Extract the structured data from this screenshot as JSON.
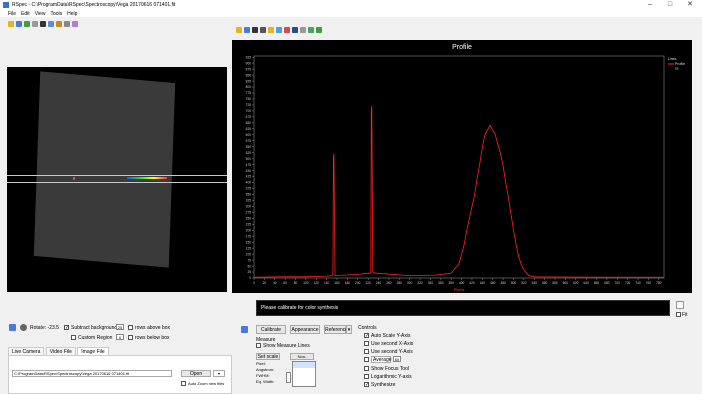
{
  "window": {
    "title": "RSpec - C:\\ProgramData\\RSpec\\Spectroscopy\\Vega 20170616 071401.fit",
    "min_glyph": "–",
    "max_glyph": "□",
    "close_glyph": "✕"
  },
  "menu": [
    "File",
    "Edit",
    "View",
    "Tools",
    "Help"
  ],
  "left_controls": {
    "rotate_label": "Rotate: -23.5",
    "subtract_background_label": "Subtract background",
    "custom_region_label": "Custom Region",
    "rows_above_value": "20",
    "rows_above_label": "rows above box",
    "rows_below_value": "0",
    "rows_below_label": "rows below box",
    "tabs": [
      "Live Camera",
      "Video File",
      "Image File"
    ],
    "active_tab": "Image File",
    "file_path": "C:\\ProgramData\\RSpec\\Spectroscopy\\Vega 20170616 071401.fit",
    "open_label": "Open",
    "auto_zoom_label": "Auto Zoom new files"
  },
  "profile_chart": {
    "title": "Profile",
    "x_axis_label": "Pixels",
    "legend": {
      "title": "Lines",
      "entries": [
        "Profile",
        "ss"
      ]
    },
    "y_ticks": [
      "925",
      "900",
      "875",
      "850",
      "825",
      "800",
      "775",
      "750",
      "725",
      "700",
      "675",
      "650",
      "625",
      "600",
      "575",
      "550",
      "525",
      "500",
      "475",
      "450",
      "425",
      "400",
      "375",
      "350",
      "325",
      "300",
      "275",
      "250",
      "225",
      "200",
      "175",
      "150",
      "125",
      "100",
      "75",
      "50",
      "25",
      "0"
    ],
    "x_ticks": [
      "0",
      "20",
      "40",
      "60",
      "80",
      "100",
      "120",
      "140",
      "160",
      "180",
      "200",
      "220",
      "240",
      "260",
      "280",
      "300",
      "320",
      "340",
      "360",
      "380",
      "400",
      "420",
      "440",
      "460",
      "480",
      "500",
      "520",
      "540",
      "560",
      "580",
      "600",
      "620",
      "640",
      "660",
      "680",
      "700",
      "720",
      "740",
      "760",
      "780"
    ]
  },
  "chart_data": {
    "type": "line",
    "title": "Profile",
    "xlabel": "Pixels",
    "ylabel": "",
    "xlim": [
      0,
      790
    ],
    "ylim": [
      0,
      930
    ],
    "grid": false,
    "legend": "top-right",
    "series": [
      {
        "name": "Profile",
        "color": "#ff2020",
        "x": [
          0,
          50,
          100,
          140,
          152,
          153,
          154,
          156,
          200,
          220,
          225,
          226,
          227,
          229,
          235,
          300,
          350,
          380,
          395,
          405,
          410,
          415,
          420,
          425,
          430,
          435,
          440,
          445,
          450,
          455,
          460,
          465,
          470,
          475,
          480,
          485,
          490,
          495,
          500,
          505,
          510,
          515,
          520,
          525,
          530,
          540,
          600,
          700,
          790
        ],
        "y": [
          3,
          5,
          5,
          8,
          10,
          500,
          520,
          10,
          15,
          20,
          20,
          700,
          720,
          25,
          20,
          10,
          12,
          20,
          60,
          140,
          200,
          250,
          300,
          350,
          420,
          480,
          550,
          600,
          620,
          640,
          620,
          600,
          560,
          520,
          470,
          400,
          340,
          270,
          200,
          140,
          90,
          55,
          35,
          20,
          10,
          5,
          4,
          3,
          3
        ]
      }
    ]
  },
  "status_message": "Please calibrate for color synthesis",
  "right_panel": {
    "fit_label": "Fit",
    "calibrate_label": "Calibrate",
    "appearance_label": "Appearance",
    "reference_label": "Reference",
    "measure_label": "Measure",
    "show_measure_lines_label": "Show Measure Lines",
    "set_scale_label": "Set scale",
    "non_uniformity_label": "Non-uniformity",
    "field_labels": [
      "Pixel:",
      "Angstrom:",
      "FWHM:",
      "Eq. Width:"
    ],
    "controls_label": "Controls",
    "auto_scale_label": "Auto Scale Y-Axis",
    "use_second_x_label": "Use second X-Axis",
    "use_second_y_label": "Use second Y-Axis",
    "average_label": "Average",
    "average_value": "60",
    "show_focus_label": "Show Focus Tool",
    "log_y_label": "Logarithmic Y-axis",
    "synthesize_label": "Synthesize"
  },
  "colors": {
    "accent": "#3a6fd8",
    "profile_line": "#ff2020"
  }
}
